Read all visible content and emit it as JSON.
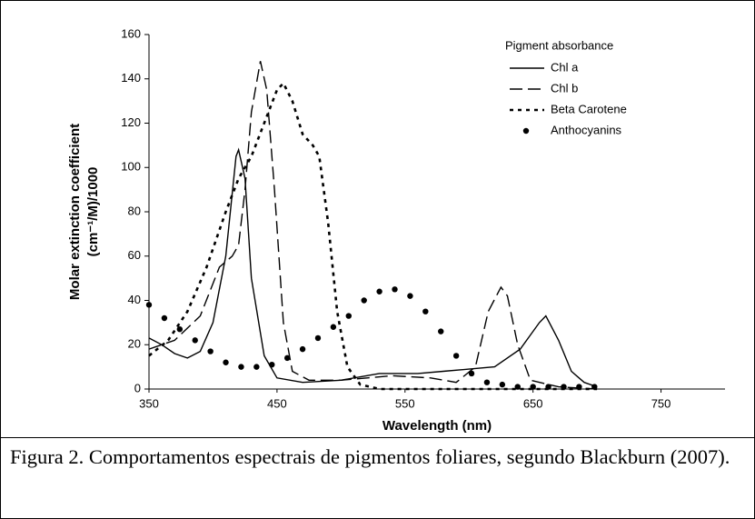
{
  "chart_data": {
    "type": "line",
    "x_label": "Wavelength (nm)",
    "y_label": [
      "Molar extinction coefficient",
      "(cm⁻¹/M)/1000"
    ],
    "legend_title": "Pigment absorbance",
    "legend_position": "upper right",
    "xlim": [
      350,
      800
    ],
    "xticks": [
      350,
      450,
      550,
      650,
      750
    ],
    "ylim": [
      0,
      160
    ],
    "yticks": [
      0,
      20,
      40,
      60,
      80,
      100,
      120,
      140,
      160
    ],
    "grid": false,
    "series": [
      {
        "name": "Chl a",
        "color": "#000000",
        "style": "solid",
        "x": [
          350,
          360,
          370,
          380,
          390,
          400,
          410,
          418,
          420,
          425,
          430,
          440,
          450,
          470,
          500,
          530,
          560,
          580,
          600,
          620,
          640,
          655,
          660,
          670,
          680,
          690,
          700
        ],
        "values": [
          23,
          20,
          16,
          14,
          17,
          30,
          60,
          105,
          108,
          95,
          50,
          15,
          5,
          3,
          4,
          7,
          7,
          8,
          9,
          10,
          18,
          30,
          33,
          22,
          8,
          3,
          1
        ]
      },
      {
        "name": "Chl b",
        "color": "#000000",
        "style": "dashed",
        "x": [
          350,
          370,
          390,
          405,
          415,
          420,
          425,
          430,
          437,
          442,
          448,
          455,
          462,
          475,
          500,
          540,
          570,
          590,
          605,
          615,
          625,
          630,
          638,
          648,
          670,
          700
        ],
        "values": [
          18,
          22,
          33,
          55,
          60,
          65,
          90,
          125,
          148,
          135,
          90,
          30,
          8,
          4,
          4,
          6,
          5,
          3,
          10,
          35,
          46,
          42,
          20,
          4,
          1,
          0
        ]
      },
      {
        "name": "Beta Carotene",
        "color": "#000000",
        "style": "dotted",
        "x": [
          350,
          365,
          380,
          395,
          410,
          420,
          430,
          440,
          450,
          455,
          462,
          470,
          478,
          483,
          490,
          497,
          505,
          515,
          530,
          550,
          600,
          650,
          700
        ],
        "values": [
          15,
          22,
          35,
          55,
          80,
          95,
          105,
          120,
          135,
          138,
          130,
          115,
          110,
          105,
          75,
          35,
          10,
          2,
          0,
          0,
          0,
          0,
          0
        ]
      },
      {
        "name": "Anthocyanins",
        "color": "#000000",
        "style": "markers",
        "x": [
          350,
          362,
          374,
          386,
          398,
          410,
          422,
          434,
          446,
          458,
          470,
          482,
          494,
          506,
          518,
          530,
          542,
          554,
          566,
          578,
          590,
          602,
          614,
          626,
          638,
          650,
          662,
          674,
          686,
          698
        ],
        "values": [
          38,
          32,
          27,
          22,
          17,
          12,
          10,
          10,
          11,
          14,
          18,
          23,
          28,
          33,
          40,
          44,
          45,
          42,
          35,
          26,
          15,
          7,
          3,
          2,
          1,
          1,
          1,
          1,
          1,
          1
        ]
      }
    ]
  },
  "caption": "Figura 2. Comportamentos espectrais de pigmentos foliares, segundo Blackburn (2007)."
}
